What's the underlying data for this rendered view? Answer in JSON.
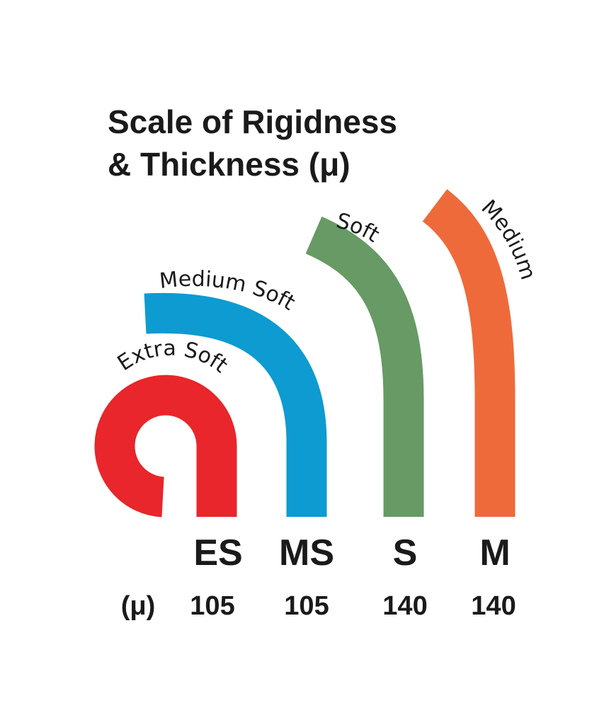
{
  "title": [
    "Scale of Rigidness",
    "& Thickness (μ)"
  ],
  "unit_label": "(μ)",
  "items": [
    {
      "name": "Extra Soft",
      "code": "ES",
      "thickness": 105
    },
    {
      "name": "Medium Soft",
      "code": "MS",
      "thickness": 105
    },
    {
      "name": "Soft",
      "code": "S",
      "thickness": 140
    },
    {
      "name": "Medium",
      "code": "M",
      "thickness": 140
    }
  ]
}
